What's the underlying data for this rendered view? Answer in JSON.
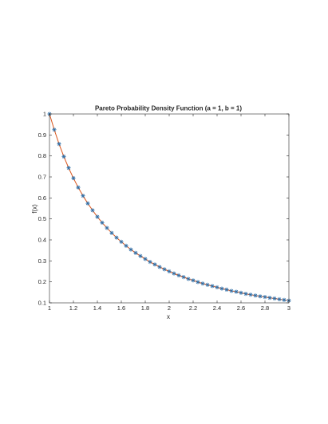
{
  "chart_data": {
    "type": "line",
    "title": "Pareto Probability Density Function (a = 1, b = 1)",
    "xlabel": "x",
    "ylabel": "f(x)",
    "xlim": [
      1,
      3
    ],
    "ylim": [
      0.1,
      1
    ],
    "xticks": [
      1,
      1.2,
      1.4,
      1.6,
      1.8,
      2,
      2.2,
      2.4,
      2.6,
      2.8,
      3
    ],
    "xtick_labels": [
      "1",
      "1.2",
      "1.4",
      "1.6",
      "1.8",
      "2",
      "2.2",
      "2.4",
      "2.6",
      "2.8",
      "3"
    ],
    "yticks": [
      0.1,
      0.2,
      0.3,
      0.4,
      0.5,
      0.6,
      0.7,
      0.8,
      0.9,
      1
    ],
    "ytick_labels": [
      "0.1",
      "0.2",
      "0.3",
      "0.4",
      "0.5",
      "0.6",
      "0.7",
      "0.8",
      "0.9",
      "1"
    ],
    "grid": false,
    "series": [
      {
        "style": "line",
        "color": "#d95319",
        "x": [
          1,
          1.04,
          1.08,
          1.12,
          1.16,
          1.2,
          1.24,
          1.28,
          1.32,
          1.36,
          1.4,
          1.44,
          1.48,
          1.52,
          1.56,
          1.6,
          1.64,
          1.68,
          1.72,
          1.76,
          1.8,
          1.84,
          1.88,
          1.92,
          1.96,
          2,
          2.04,
          2.08,
          2.12,
          2.16,
          2.2,
          2.24,
          2.28,
          2.32,
          2.36,
          2.4,
          2.44,
          2.48,
          2.52,
          2.56,
          2.6,
          2.64,
          2.68,
          2.72,
          2.76,
          2.8,
          2.84,
          2.88,
          2.92,
          2.96,
          3
        ],
        "y": [
          1,
          0.925,
          0.857,
          0.797,
          0.743,
          0.694,
          0.65,
          0.61,
          0.574,
          0.541,
          0.51,
          0.482,
          0.457,
          0.433,
          0.411,
          0.391,
          0.372,
          0.354,
          0.338,
          0.323,
          0.309,
          0.295,
          0.283,
          0.271,
          0.26,
          0.25,
          0.24,
          0.231,
          0.223,
          0.214,
          0.207,
          0.199,
          0.192,
          0.186,
          0.18,
          0.174,
          0.168,
          0.163,
          0.157,
          0.153,
          0.148,
          0.143,
          0.139,
          0.135,
          0.131,
          0.128,
          0.124,
          0.121,
          0.117,
          0.114,
          0.111
        ]
      },
      {
        "style": "markers",
        "marker": "asterisk",
        "color": "#2f6fa8",
        "x": [
          1,
          1.04,
          1.08,
          1.12,
          1.16,
          1.2,
          1.24,
          1.28,
          1.32,
          1.36,
          1.4,
          1.44,
          1.48,
          1.52,
          1.56,
          1.6,
          1.64,
          1.68,
          1.72,
          1.76,
          1.8,
          1.84,
          1.88,
          1.92,
          1.96,
          2,
          2.04,
          2.08,
          2.12,
          2.16,
          2.2,
          2.24,
          2.28,
          2.32,
          2.36,
          2.4,
          2.44,
          2.48,
          2.52,
          2.56,
          2.6,
          2.64,
          2.68,
          2.72,
          2.76,
          2.8,
          2.84,
          2.88,
          2.92,
          2.96,
          3
        ],
        "y": [
          1,
          0.925,
          0.857,
          0.797,
          0.743,
          0.694,
          0.65,
          0.61,
          0.574,
          0.541,
          0.51,
          0.482,
          0.457,
          0.433,
          0.411,
          0.391,
          0.372,
          0.354,
          0.338,
          0.323,
          0.309,
          0.295,
          0.283,
          0.271,
          0.26,
          0.25,
          0.24,
          0.231,
          0.223,
          0.214,
          0.207,
          0.199,
          0.192,
          0.186,
          0.18,
          0.174,
          0.168,
          0.163,
          0.157,
          0.153,
          0.148,
          0.143,
          0.139,
          0.135,
          0.131,
          0.128,
          0.124,
          0.121,
          0.117,
          0.114,
          0.111
        ]
      }
    ]
  }
}
